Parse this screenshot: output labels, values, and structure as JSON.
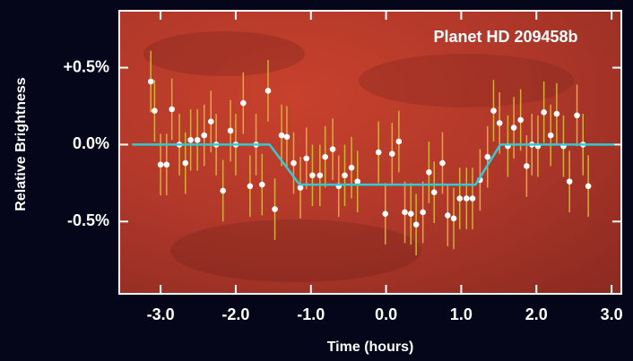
{
  "chart_data": {
    "type": "scatter",
    "annotation": "Planet HD 209458b",
    "x_label": "Time (hours)",
    "y_label": "Relative Brightness",
    "xlim": [
      -3.55,
      3.13
    ],
    "ylim": [
      -0.97,
      0.87
    ],
    "xticks": [
      {
        "value": -3,
        "label": "-3.0"
      },
      {
        "value": -2,
        "label": "-2.0"
      },
      {
        "value": -1,
        "label": "-1.0"
      },
      {
        "value": 0,
        "label": "0.0"
      },
      {
        "value": 1,
        "label": "1.0"
      },
      {
        "value": 2,
        "label": "2.0"
      },
      {
        "value": 3,
        "label": "3.0"
      }
    ],
    "yticks": [
      {
        "value": 0.5,
        "label": "+0.5%"
      },
      {
        "value": 0,
        "label": "0.0%"
      },
      {
        "value": -0.5,
        "label": "-0.5%"
      }
    ],
    "series": [
      {
        "color": "#ffffff",
        "error_color": "#d6ae3a",
        "x": [
          -3.13,
          -3.08,
          -3.0,
          -2.92,
          -2.85,
          -2.75,
          -2.67,
          -2.6,
          -2.51,
          -2.42,
          -2.33,
          -2.26,
          -2.17,
          -2.07,
          -2.0,
          -1.9,
          -1.81,
          -1.73,
          -1.65,
          -1.57,
          -1.48,
          -1.39,
          -1.32,
          -1.23,
          -1.14,
          -1.06,
          -0.98,
          -0.88,
          -0.81,
          -0.71,
          -0.63,
          -0.55,
          -0.46,
          -0.38,
          -0.1,
          -0.01,
          0.08,
          0.17,
          0.25,
          0.33,
          0.4,
          0.49,
          0.57,
          0.64,
          0.75,
          0.82,
          0.9,
          0.98,
          1.07,
          1.15,
          1.25,
          1.35,
          1.43,
          1.51,
          1.62,
          1.7,
          1.79,
          1.87,
          1.94,
          2.02,
          2.1,
          2.19,
          2.27,
          2.36,
          2.44,
          2.54,
          2.62,
          2.69
        ],
        "values": [
          0.41,
          0.22,
          -0.13,
          -0.13,
          0.23,
          0.0,
          -0.12,
          0.03,
          0.03,
          0.06,
          0.15,
          0.0,
          -0.3,
          0.09,
          0.0,
          0.27,
          -0.27,
          0.0,
          -0.26,
          0.35,
          -0.42,
          0.06,
          0.05,
          -0.12,
          -0.28,
          -0.09,
          -0.2,
          -0.2,
          -0.08,
          -0.03,
          -0.27,
          -0.2,
          -0.15,
          -0.24,
          -0.05,
          -0.45,
          -0.06,
          0.02,
          -0.44,
          -0.45,
          -0.52,
          -0.44,
          -0.18,
          -0.31,
          -0.12,
          -0.46,
          -0.48,
          -0.35,
          -0.35,
          -0.35,
          -0.23,
          -0.08,
          0.22,
          0.14,
          -0.01,
          0.11,
          0.16,
          -0.14,
          0.0,
          -0.01,
          0.21,
          0.06,
          0.2,
          -0.01,
          -0.24,
          0.19,
          0.0,
          -0.27
        ],
        "errors": [
          0.2,
          0.2,
          0.2,
          0.2,
          0.2,
          0.2,
          0.2,
          0.2,
          0.2,
          0.2,
          0.2,
          0.2,
          0.2,
          0.2,
          0.2,
          0.2,
          0.2,
          0.2,
          0.2,
          0.2,
          0.2,
          0.2,
          0.2,
          0.2,
          0.2,
          0.2,
          0.2,
          0.2,
          0.2,
          0.2,
          0.2,
          0.2,
          0.2,
          0.2,
          0.2,
          0.2,
          0.2,
          0.2,
          0.2,
          0.2,
          0.2,
          0.2,
          0.2,
          0.2,
          0.2,
          0.2,
          0.2,
          0.2,
          0.2,
          0.2,
          0.2,
          0.2,
          0.2,
          0.2,
          0.2,
          0.2,
          0.2,
          0.2,
          0.2,
          0.2,
          0.2,
          0.2,
          0.2,
          0.2,
          0.2,
          0.2,
          0.2,
          0.2
        ]
      },
      {
        "type": "line",
        "color": "#33c9d6",
        "x": [
          -3.38,
          -1.55,
          -1.15,
          1.19,
          1.52,
          3.04
        ],
        "values": [
          0,
          0,
          -0.26,
          -0.26,
          0,
          0
        ]
      }
    ]
  }
}
